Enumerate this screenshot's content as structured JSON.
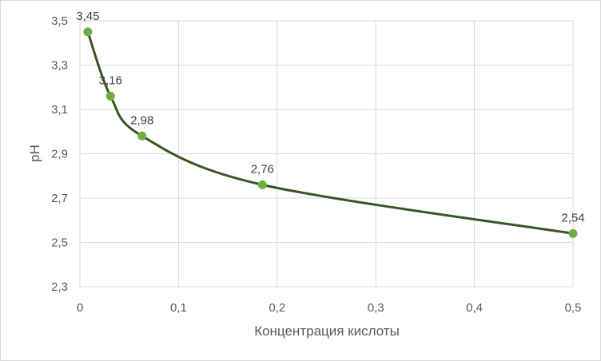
{
  "chart_data": {
    "type": "scatter",
    "xlabel": "Концентрация кислоты",
    "ylabel": "pH",
    "xlim": [
      0,
      0.5
    ],
    "ylim": [
      2.3,
      3.5
    ],
    "grid": true,
    "x_ticks": [
      "0",
      "0,1",
      "0,2",
      "0,3",
      "0,4",
      "0,5"
    ],
    "y_ticks": [
      "2,3",
      "2,5",
      "2,7",
      "2,9",
      "3,1",
      "3,3",
      "3,5"
    ],
    "series": [
      {
        "x": [
          0.008,
          0.031,
          0.063,
          0.185,
          0.5
        ],
        "y": [
          3.45,
          3.16,
          2.98,
          2.76,
          2.54
        ],
        "labels": [
          "3,45",
          "3,16",
          "2,98",
          "2,76",
          "2,54"
        ]
      }
    ],
    "colors": {
      "marker": "#70ad47",
      "line": "#375623",
      "grid": "#d9d9d9",
      "text": "#595959"
    }
  }
}
